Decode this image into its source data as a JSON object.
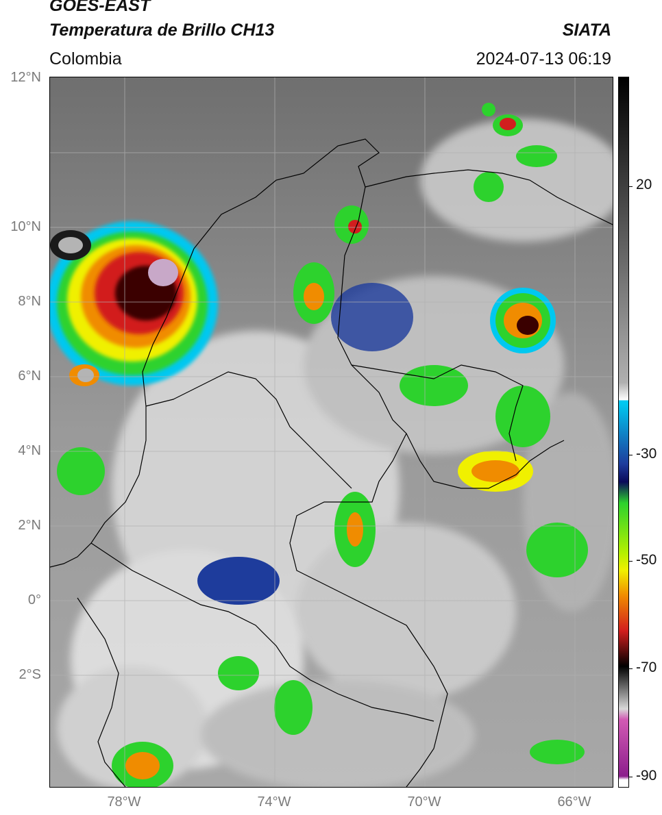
{
  "header": {
    "satellite": "GOES-EAST",
    "product": "Temperatura de Brillo CH13",
    "region": "Colombia",
    "source": "SIATA",
    "datetime": "2024-07-13 06:19"
  },
  "latitude_labels": [
    "12°N",
    "10°N",
    "8°N",
    "6°N",
    "4°N",
    "2°N",
    "0°",
    "2°S"
  ],
  "longitude_labels": [
    "78°W",
    "74°W",
    "70°W",
    "66°W"
  ],
  "colorbar": {
    "labels": [
      "20",
      "-30",
      "-50",
      "-70",
      "-90"
    ],
    "colors": {
      "warm_gray": "#7f7f7f",
      "cold_white": "#f2f2f2",
      "cyan": "#00c8f0",
      "blue": "#1e3c9c",
      "green": "#2dd22d",
      "yellow": "#f0f000",
      "orange": "#f08c00",
      "red": "#d21e1e",
      "black": "#000000",
      "magenta": "#d25ab4",
      "purple": "#8c1e8c"
    }
  },
  "map_colors": {
    "background": "#7d7d7d",
    "coast_border": "#000000",
    "grid": "#b0b0b0"
  }
}
